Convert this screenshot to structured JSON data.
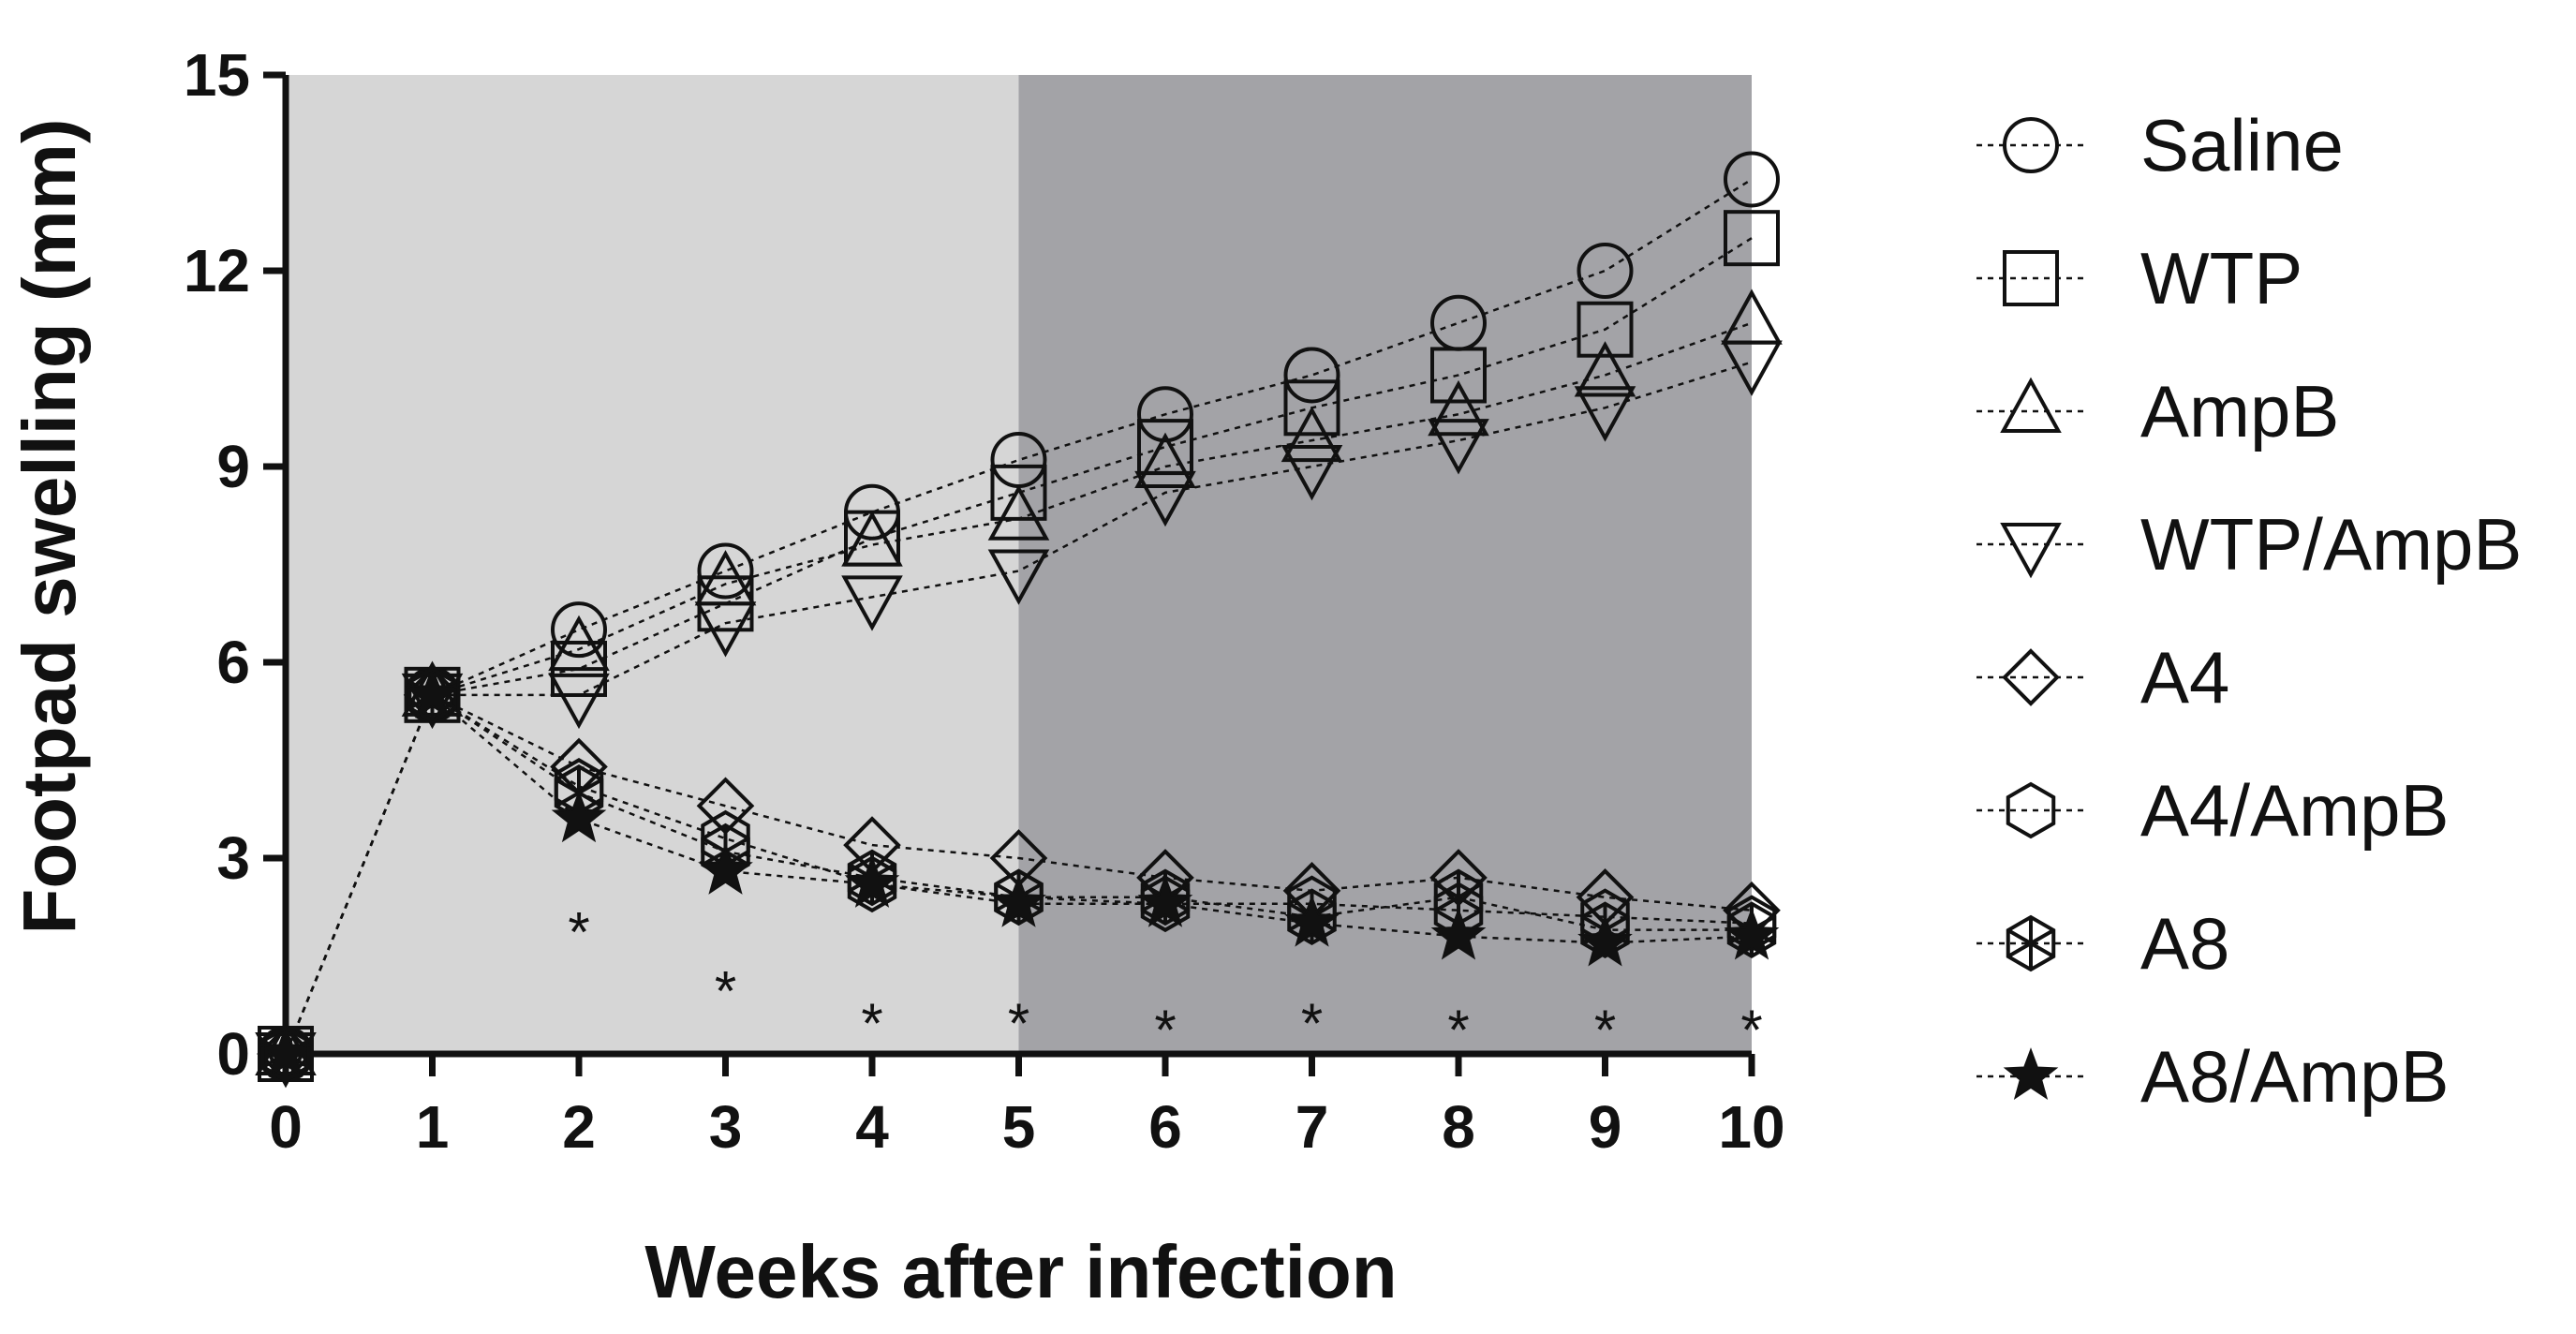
{
  "chart_data": {
    "type": "line",
    "x": [
      0,
      1,
      2,
      3,
      4,
      5,
      6,
      7,
      8,
      9,
      10
    ],
    "xlabel": "Weeks after infection",
    "ylabel": "Footpad swelling (mm)",
    "ylim": [
      0,
      15
    ],
    "xlim": [
      0,
      10
    ],
    "xticks": [
      "0",
      "1",
      "2",
      "3",
      "4",
      "5",
      "6",
      "7",
      "8",
      "9",
      "10"
    ],
    "yticks": [
      "0",
      "3",
      "6",
      "9",
      "12",
      "15"
    ],
    "shaded_regions": [
      {
        "from": 0,
        "to": 5,
        "color": "#d6d6d6"
      },
      {
        "from": 5,
        "to": 10,
        "color": "#a3a3a7"
      }
    ],
    "legend_position": "right",
    "series": [
      {
        "name": "Saline",
        "marker": "circle",
        "values": [
          0,
          5.5,
          6.5,
          7.4,
          8.3,
          9.1,
          9.8,
          10.4,
          11.2,
          12.0,
          13.4
        ]
      },
      {
        "name": "WTP",
        "marker": "square",
        "values": [
          0,
          5.5,
          5.9,
          6.9,
          7.9,
          8.6,
          9.3,
          9.9,
          10.4,
          11.1,
          12.5
        ]
      },
      {
        "name": "AmpB",
        "marker": "triangle-up",
        "values": [
          0,
          5.5,
          6.2,
          7.2,
          7.8,
          8.2,
          9.0,
          9.4,
          9.8,
          10.4,
          11.2
        ]
      },
      {
        "name": "WTP/AmpB",
        "marker": "triangle-down",
        "values": [
          0,
          5.5,
          5.5,
          6.6,
          7.0,
          7.4,
          8.6,
          9.0,
          9.4,
          9.9,
          10.6
        ]
      },
      {
        "name": "A4",
        "marker": "diamond",
        "values": [
          0,
          5.5,
          4.4,
          3.8,
          3.2,
          3.0,
          2.7,
          2.5,
          2.7,
          2.4,
          2.2
        ]
      },
      {
        "name": "A4/AmpB",
        "marker": "hexagon",
        "values": [
          0,
          5.5,
          4.1,
          3.3,
          2.6,
          2.4,
          2.3,
          2.3,
          2.2,
          2.1,
          2.0
        ]
      },
      {
        "name": "A8",
        "marker": "hexagon-star",
        "values": [
          0,
          5.5,
          4.0,
          3.1,
          2.7,
          2.4,
          2.4,
          2.1,
          2.4,
          1.9,
          1.9
        ]
      },
      {
        "name": "A8/AmpB",
        "marker": "star",
        "values": [
          0,
          5.5,
          3.6,
          2.8,
          2.6,
          2.3,
          2.3,
          2.0,
          1.8,
          1.7,
          1.8
        ]
      }
    ],
    "significance": [
      {
        "x": 2,
        "y": 2.0,
        "text": "*"
      },
      {
        "x": 3,
        "y": 1.1,
        "text": "*"
      },
      {
        "x": 4,
        "y": 0.6,
        "text": "*"
      },
      {
        "x": 5,
        "y": 0.6,
        "text": "*"
      },
      {
        "x": 6,
        "y": 0.5,
        "text": "*"
      },
      {
        "x": 7,
        "y": 0.6,
        "text": "*"
      },
      {
        "x": 8,
        "y": 0.5,
        "text": "*"
      },
      {
        "x": 9,
        "y": 0.5,
        "text": "*"
      },
      {
        "x": 10,
        "y": 0.5,
        "text": "*"
      }
    ]
  }
}
